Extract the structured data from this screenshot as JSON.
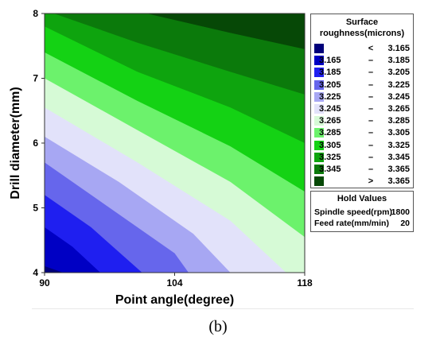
{
  "chart_data": {
    "type": "contour",
    "xlabel": "Point angle(degree)",
    "ylabel": "Drill diameter(mm)",
    "xlim": [
      90,
      118
    ],
    "ylim": [
      4,
      8
    ],
    "x_ticks": [
      "90",
      "104",
      "118"
    ],
    "y_ticks": [
      "4",
      "5",
      "6",
      "7",
      "8"
    ],
    "legend_title": "Surface roughness(microns)",
    "legend_title_lines": [
      "Surface",
      "roughness(microns)"
    ],
    "levels": [
      {
        "low": "",
        "op": "<",
        "high": "3.165",
        "color": "#00007a"
      },
      {
        "low": "3.165",
        "op": "–",
        "high": "3.185",
        "color": "#0000c4"
      },
      {
        "low": "3.185",
        "op": "–",
        "high": "3.205",
        "color": "#1f1ff0"
      },
      {
        "low": "3.205",
        "op": "–",
        "high": "3.225",
        "color": "#6666ec"
      },
      {
        "low": "3.225",
        "op": "–",
        "high": "3.245",
        "color": "#a7a7f3"
      },
      {
        "low": "3.245",
        "op": "–",
        "high": "3.265",
        "color": "#e2e2fa"
      },
      {
        "low": "3.265",
        "op": "–",
        "high": "3.285",
        "color": "#d6fad6"
      },
      {
        "low": "3.285",
        "op": "–",
        "high": "3.305",
        "color": "#6cf26c"
      },
      {
        "low": "3.305",
        "op": "–",
        "high": "3.325",
        "color": "#14d214"
      },
      {
        "low": "3.325",
        "op": "–",
        "high": "3.345",
        "color": "#0ea40e"
      },
      {
        "low": "3.345",
        "op": "–",
        "high": "3.365",
        "color": "#0b7a0b"
      },
      {
        "low": "",
        "op": ">",
        "high": "3.365",
        "color": "#064806"
      }
    ],
    "contour_lines": [
      {
        "label": "3.165",
        "points": [
          [
            90,
            4.1
          ],
          [
            92,
            4.0
          ]
        ]
      },
      {
        "label": "3.185",
        "points": [
          [
            90,
            4.7
          ],
          [
            93,
            4.4
          ],
          [
            96,
            4.0
          ]
        ]
      },
      {
        "label": "3.205",
        "points": [
          [
            90,
            5.2
          ],
          [
            95,
            4.7
          ],
          [
            100.5,
            4.0
          ]
        ]
      },
      {
        "label": "3.225",
        "points": [
          [
            90,
            5.7
          ],
          [
            97,
            5.0
          ],
          [
            104,
            4.3
          ],
          [
            105.5,
            4.0
          ]
        ]
      },
      {
        "label": "3.245",
        "points": [
          [
            90,
            6.1
          ],
          [
            98,
            5.4
          ],
          [
            106,
            4.6
          ],
          [
            110,
            4.0
          ]
        ]
      },
      {
        "label": "3.265",
        "points": [
          [
            90,
            6.55
          ],
          [
            100,
            5.7
          ],
          [
            110,
            4.8
          ],
          [
            116,
            4.0
          ]
        ]
      },
      {
        "label": "3.285",
        "points": [
          [
            90,
            7.0
          ],
          [
            100,
            6.2
          ],
          [
            110,
            5.4
          ],
          [
            118,
            4.55
          ]
        ]
      },
      {
        "label": "3.305",
        "points": [
          [
            90,
            7.4
          ],
          [
            100,
            6.65
          ],
          [
            110,
            5.95
          ],
          [
            118,
            5.25
          ]
        ]
      },
      {
        "label": "3.325",
        "points": [
          [
            90,
            7.8
          ],
          [
            100,
            7.1
          ],
          [
            110,
            6.55
          ],
          [
            118,
            6.0
          ]
        ]
      },
      {
        "label": "3.345",
        "points": [
          [
            91,
            8.0
          ],
          [
            100,
            7.55
          ],
          [
            110,
            7.1
          ],
          [
            118,
            6.75
          ]
        ]
      },
      {
        "label": "3.365",
        "points": [
          [
            101,
            8.0
          ],
          [
            110,
            7.7
          ],
          [
            118,
            7.45
          ]
        ]
      }
    ],
    "hold_values": {
      "title": "Hold Values",
      "rows": [
        {
          "label": "Spindle speed(rpm)",
          "value": "1800"
        },
        {
          "label": "Feed rate(mm/min)",
          "value": "20"
        }
      ]
    }
  },
  "caption": "(b)"
}
